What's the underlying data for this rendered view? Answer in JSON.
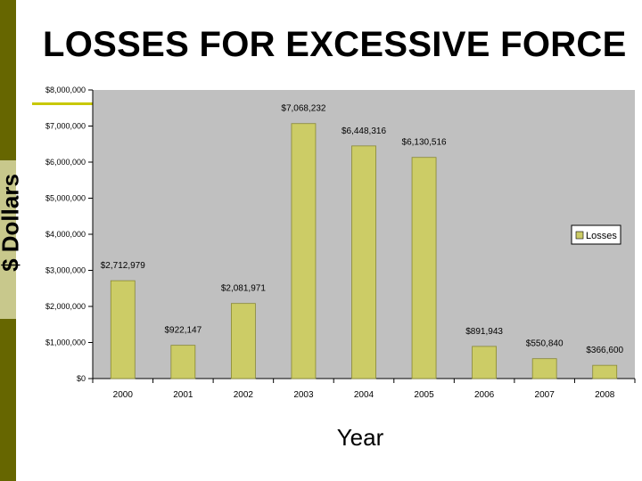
{
  "slide": {
    "title": "LOSSES FOR EXCESSIVE FORCE"
  },
  "colors": {
    "plot_background": "#c0c0c0",
    "bar_fill": "#cccc66",
    "bar_stroke": "#888833",
    "accent_dark": "#666600",
    "accent_light": "#c8c88c",
    "accent_line": "#c8c800"
  },
  "chart_data": {
    "type": "bar",
    "title": "LOSSES FOR EXCESSIVE FORCE",
    "xlabel": "Year",
    "ylabel": "$ Dollars",
    "categories": [
      "2000",
      "2001",
      "2002",
      "2003",
      "2004",
      "2005",
      "2006",
      "2007",
      "2008"
    ],
    "series": [
      {
        "name": "Losses",
        "values": [
          2712979,
          922147,
          2081971,
          7068232,
          6448316,
          6130516,
          891943,
          550840,
          366600
        ],
        "labels": [
          "$2,712,979",
          "$922,147",
          "$2,081,971",
          "$7,068,232",
          "$6,448,316",
          "$6,130,516",
          "$891,943",
          "$550,840",
          "$366,600"
        ]
      }
    ],
    "ylim": [
      0,
      8000000
    ],
    "yticks": [
      0,
      1000000,
      2000000,
      3000000,
      4000000,
      5000000,
      6000000,
      7000000,
      8000000
    ],
    "ytick_labels": [
      "$0",
      "$1,000,000",
      "$2,000,000",
      "$3,000,000",
      "$4,000,000",
      "$5,000,000",
      "$6,000,000",
      "$7,000,000",
      "$8,000,000"
    ],
    "grid": false,
    "legend": {
      "placement": "right",
      "entries": [
        "Losses"
      ]
    }
  }
}
